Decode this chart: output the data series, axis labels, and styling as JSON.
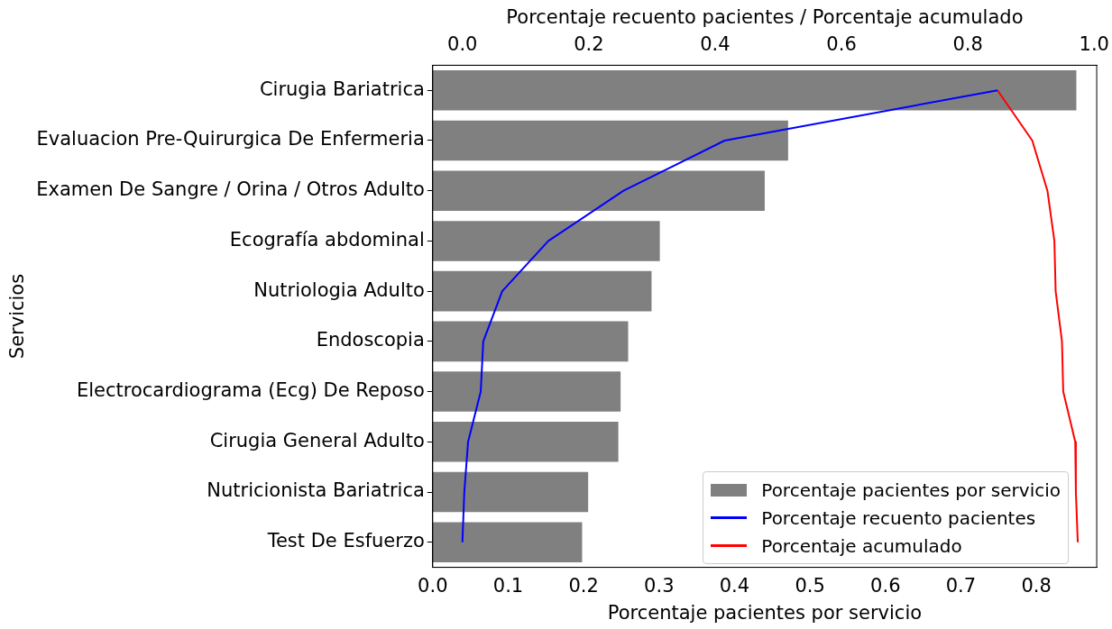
{
  "chart_data": {
    "type": "bar",
    "orientation": "horizontal",
    "xlabel": "Porcentaje pacientes por servicio",
    "x2label": "Porcentaje recuento pacientes / Porcentaje acumulado",
    "ylabel": "Servicios",
    "categories": [
      "Cirugia Bariatrica",
      "Evaluacion Pre-Quirurgica De Enfermeria",
      "Examen De Sangre / Orina / Otros Adulto",
      "Ecografía abdominal",
      "Nutriologia Adulto",
      "Endoscopia",
      "Electrocardiograma (Ecg) De Reposo",
      "Cirugia General Adulto",
      "Nutricionista Bariatrica",
      "Test De Esfuerzo"
    ],
    "series": [
      {
        "name": "Porcentaje pacientes por servicio",
        "color": "#808080",
        "values": [
          0.853,
          0.471,
          0.44,
          0.301,
          0.29,
          0.259,
          0.249,
          0.246,
          0.206,
          0.198
        ]
      },
      {
        "name": "Porcentaje recuento pacientes",
        "type": "line",
        "axis": "x2",
        "color": "#0000ff",
        "values": [
          0.847,
          0.415,
          0.255,
          0.136,
          0.063,
          0.033,
          0.029,
          0.009,
          0.003,
          0.0
        ]
      },
      {
        "name": "Porcentaje acumulado",
        "type": "line",
        "axis": "x2",
        "color": "#ff0000",
        "values": [
          0.847,
          0.902,
          0.926,
          0.937,
          0.939,
          0.949,
          0.951,
          0.97,
          0.971,
          0.974
        ]
      }
    ],
    "xlim": [
      0,
      0.88
    ],
    "xticks": [
      {
        "value": 0,
        "label": "0.0"
      },
      0.1,
      0.2,
      0.3,
      0.4,
      0.5,
      0.6,
      0.7,
      0.8
    ],
    "x2lim": [
      -0.047,
      1.004
    ],
    "x2ticks": [
      {
        "value": 0,
        "label": "0.0"
      },
      0.2,
      0.4,
      0.6,
      0.8,
      {
        "value": 1,
        "label": "1.0"
      }
    ],
    "legend": "bottom right"
  }
}
